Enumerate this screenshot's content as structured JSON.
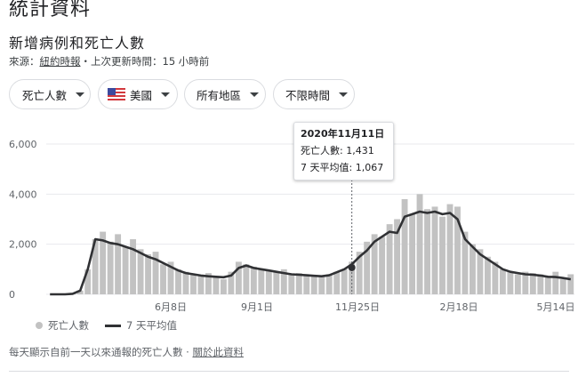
{
  "header": {
    "title": "統計資料",
    "subtitle": "新增病例和死亡人數",
    "source_prefix": "來源：",
    "source_name": "紐約時報",
    "update_text": "・上次更新時間：15 小時前"
  },
  "filters": [
    {
      "label": "死亡人數",
      "icon": ""
    },
    {
      "label": "美國",
      "icon": "us-flag-icon"
    },
    {
      "label": "所有地區",
      "icon": ""
    },
    {
      "label": "不限時間",
      "icon": ""
    }
  ],
  "tooltip": {
    "date": "2020年11月11日",
    "deaths_label": "死亡人數: 1,431",
    "avg_label": "7 天平均值: 1,067"
  },
  "legend": {
    "bars_label": "死亡人數",
    "line_label": "7 天平均值"
  },
  "footer": {
    "note": "每天顯示自前一天以來通報的死亡人數",
    "link": "關於此資料"
  },
  "colors": {
    "bar": "#c2c2c2",
    "line": "#303134",
    "grid": "#e8eaed"
  },
  "chart_data": {
    "type": "bar",
    "ylim": [
      0,
      6000
    ],
    "yticks": [
      0,
      2000,
      4000,
      6000
    ],
    "ytick_labels": [
      "0",
      "2,000",
      "4,000",
      "6,000"
    ],
    "xtick_labels": [
      "6月8日",
      "9月1日",
      "11月25日",
      "2月18日",
      "5月14日"
    ],
    "series": [
      {
        "name": "死亡人數",
        "style": "bars",
        "values": [
          0,
          0,
          0,
          20,
          150,
          1000,
          2200,
          2500,
          2100,
          2400,
          1900,
          2200,
          1800,
          1600,
          1700,
          1200,
          1300,
          1000,
          900,
          800,
          750,
          850,
          700,
          600,
          900,
          1300,
          1200,
          1100,
          1000,
          950,
          900,
          1000,
          800,
          850,
          800,
          750,
          700,
          800,
          900,
          1000,
          1300,
          1700,
          2100,
          2400,
          2300,
          2800,
          3000,
          3800,
          3200,
          4000,
          3400,
          3500,
          3100,
          3600,
          3500,
          2500,
          2000,
          1800,
          1500,
          1300,
          1000,
          900,
          800,
          900,
          850,
          800,
          700,
          900,
          600,
          800
        ]
      },
      {
        "name": "7 天平均值",
        "style": "line",
        "values": [
          0,
          0,
          0,
          20,
          150,
          1000,
          2200,
          2150,
          2050,
          2000,
          1900,
          1800,
          1650,
          1500,
          1400,
          1250,
          1100,
          950,
          850,
          800,
          750,
          720,
          700,
          680,
          750,
          1050,
          1150,
          1050,
          1000,
          950,
          900,
          850,
          800,
          780,
          760,
          740,
          720,
          760,
          880,
          1000,
          1200,
          1500,
          1750,
          2100,
          2300,
          2500,
          2450,
          3100,
          3200,
          3300,
          3250,
          3300,
          3200,
          3250,
          3000,
          2200,
          1900,
          1600,
          1400,
          1200,
          1000,
          900,
          850,
          800,
          780,
          750,
          700,
          690,
          650,
          600
        ]
      }
    ],
    "marker": {
      "date": "2020年11月11日",
      "deaths": 1431,
      "avg": 1067
    }
  }
}
